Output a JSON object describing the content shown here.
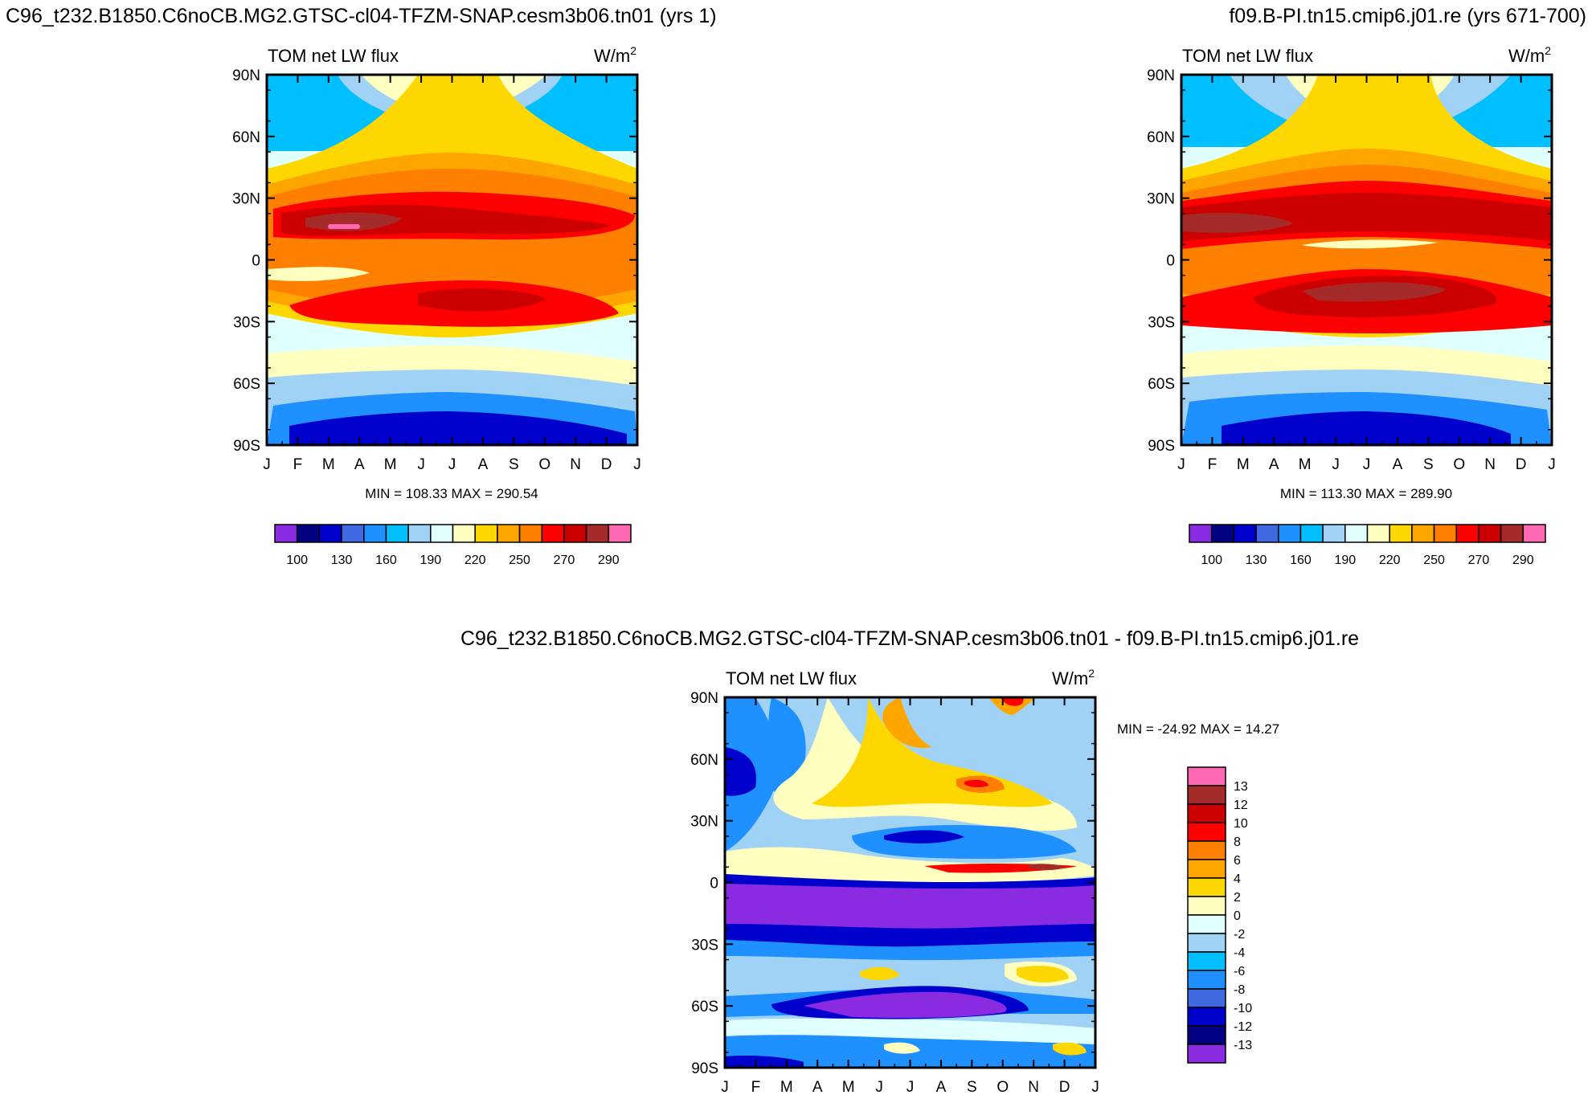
{
  "figure": {
    "panels": {
      "left": {
        "title": "C96_t232.B1850.C6noCB.MG2.GTSC-cl04-TFZM-SNAP.cesm3b06.tn01 (yrs 1)",
        "subtitle_left": "TOM net LW flux",
        "units_base": "W/m",
        "units_sup": "2",
        "stats": "MIN = 108.33 MAX = 290.54"
      },
      "right": {
        "title": "f09.B-PI.tn15.cmip6.j01.re (yrs 671-700)",
        "subtitle_left": "TOM net LW flux",
        "units_base": "W/m",
        "units_sup": "2",
        "stats": "MIN = 113.30 MAX = 289.90"
      },
      "diff": {
        "title": "C96_t232.B1850.C6noCB.MG2.GTSC-cl04-TFZM-SNAP.cesm3b06.tn01 - f09.B-PI.tn15.cmip6.j01.re",
        "subtitle_left": "TOM net LW flux",
        "units_base": "W/m",
        "units_sup": "2",
        "stats": "MIN = -24.92 MAX =  14.27"
      }
    }
  },
  "chart_data": [
    {
      "type": "heatmap",
      "id": "left",
      "title": "C96_t232.B1850.C6noCB.MG2.GTSC-cl04-TFZM-SNAP.cesm3b06.tn01 (yrs 1)",
      "variable": "TOM net LW flux",
      "units": "W/m^2",
      "x": [
        "J",
        "F",
        "M",
        "A",
        "M",
        "J",
        "J",
        "A",
        "S",
        "O",
        "N",
        "D",
        "J"
      ],
      "y": [
        "90N",
        "60N",
        "30N",
        "0",
        "30S",
        "60S",
        "90S"
      ],
      "ylim": [
        -90,
        90
      ],
      "xlim": [
        0,
        12
      ],
      "min": 108.33,
      "max": 290.54,
      "colorbar": {
        "orientation": "horizontal",
        "levels": [
          100,
          115,
          130,
          145,
          160,
          175,
          190,
          205,
          220,
          235,
          250,
          260,
          270,
          280,
          290
        ],
        "labels": [
          "100",
          "130",
          "160",
          "190",
          "220",
          "250",
          "270",
          "290"
        ]
      }
    },
    {
      "type": "heatmap",
      "id": "right",
      "title": "f09.B-PI.tn15.cmip6.j01.re (yrs 671-700)",
      "variable": "TOM net LW flux",
      "units": "W/m^2",
      "x": [
        "J",
        "F",
        "M",
        "A",
        "M",
        "J",
        "J",
        "A",
        "S",
        "O",
        "N",
        "D",
        "J"
      ],
      "y": [
        "90N",
        "60N",
        "30N",
        "0",
        "30S",
        "60S",
        "90S"
      ],
      "ylim": [
        -90,
        90
      ],
      "xlim": [
        0,
        12
      ],
      "min": 113.3,
      "max": 289.9,
      "colorbar": {
        "orientation": "horizontal",
        "levels": [
          100,
          115,
          130,
          145,
          160,
          175,
          190,
          205,
          220,
          235,
          250,
          260,
          270,
          280,
          290
        ],
        "labels": [
          "100",
          "130",
          "160",
          "190",
          "220",
          "250",
          "270",
          "290"
        ]
      }
    },
    {
      "type": "heatmap",
      "id": "diff",
      "title": "C96_t232.B1850.C6noCB.MG2.GTSC-cl04-TFZM-SNAP.cesm3b06.tn01 - f09.B-PI.tn15.cmip6.j01.re",
      "variable": "TOM net LW flux",
      "units": "W/m^2",
      "x": [
        "J",
        "F",
        "M",
        "A",
        "M",
        "J",
        "J",
        "A",
        "S",
        "O",
        "N",
        "D",
        "J"
      ],
      "y": [
        "90N",
        "60N",
        "30N",
        "0",
        "30S",
        "60S",
        "90S"
      ],
      "ylim": [
        -90,
        90
      ],
      "xlim": [
        0,
        12
      ],
      "min": -24.92,
      "max": 14.27,
      "colorbar": {
        "orientation": "vertical",
        "labels": [
          "13",
          "12",
          "10",
          "8",
          "6",
          "4",
          "2",
          "0",
          "-2",
          "-4",
          "-6",
          "-8",
          "-10",
          "-12",
          "-13"
        ]
      }
    }
  ],
  "palette": [
    "#8a2be2",
    "#000080",
    "#0000cd",
    "#4169e1",
    "#1e90ff",
    "#00bfff",
    "#a0d2f5",
    "#e0ffff",
    "#ffffc0",
    "#ffd700",
    "#ffa500",
    "#ff7f00",
    "#ff0000",
    "#cd0000",
    "#a52a2a",
    "#ff69b4"
  ]
}
